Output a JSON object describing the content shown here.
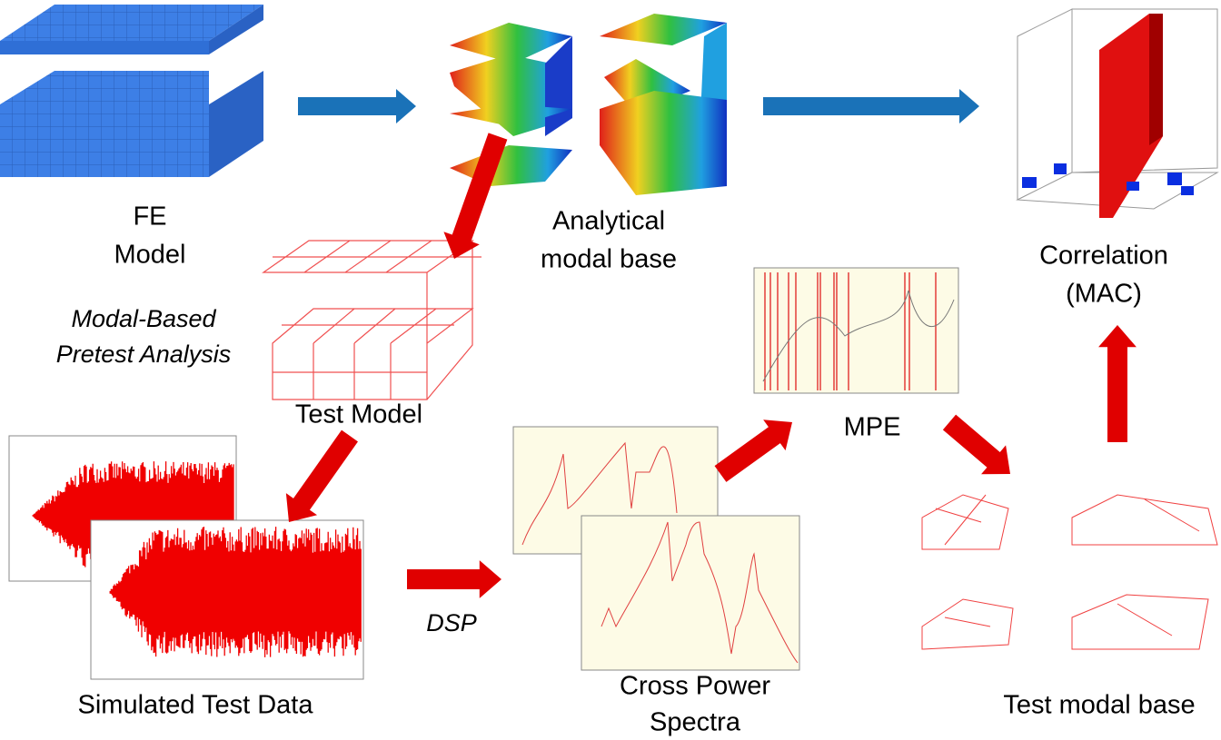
{
  "nodes": [
    {
      "lines": [
        "FE",
        "Model"
      ]
    },
    {
      "lines": [
        "Analytical",
        "modal base"
      ]
    },
    {
      "lines": [
        "Modal-Based",
        "Pretest Analysis"
      ]
    },
    {
      "lines": [
        "Test Model"
      ]
    },
    {
      "lines": [
        "Simulated Test Data"
      ]
    },
    {
      "lines": [
        "Cross Power",
        "Spectra"
      ]
    },
    {
      "lines": [
        "MPE"
      ]
    },
    {
      "lines": [
        "Test modal base"
      ]
    },
    {
      "lines": [
        "Correlation",
        "(MAC)"
      ]
    }
  ],
  "edges": [
    {
      "label": "DSP"
    }
  ]
}
